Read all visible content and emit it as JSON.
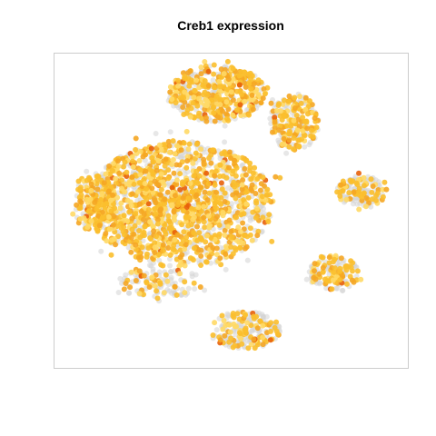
{
  "chart_data": {
    "type": "scatter",
    "title": "Creb1 expression",
    "xlabel": "",
    "ylabel": "",
    "grid": false,
    "legend": "none",
    "colors": {
      "unexpressed": "#d4d4d4",
      "low": "#ffd966",
      "mid": "#fbbf2e",
      "high": "#f5a623",
      "peak": "#e8600a",
      "frame": "#cccccc"
    },
    "regions": [
      {
        "name": "main-cluster",
        "cx": 0.36,
        "cy": 0.52,
        "rx": 0.26,
        "ry": 0.2,
        "weight": 0.5,
        "expressed_fraction": 0.65
      },
      {
        "name": "top-cluster",
        "cx": 0.46,
        "cy": 0.87,
        "rx": 0.14,
        "ry": 0.09,
        "weight": 0.16,
        "expressed_fraction": 0.65
      },
      {
        "name": "upper-right-cluster",
        "cx": 0.68,
        "cy": 0.78,
        "rx": 0.07,
        "ry": 0.09,
        "weight": 0.07,
        "expressed_fraction": 0.55
      },
      {
        "name": "left-arm",
        "cx": 0.12,
        "cy": 0.52,
        "rx": 0.06,
        "ry": 0.09,
        "weight": 0.06,
        "expressed_fraction": 0.75
      },
      {
        "name": "right-cluster",
        "cx": 0.87,
        "cy": 0.56,
        "rx": 0.07,
        "ry": 0.05,
        "weight": 0.05,
        "expressed_fraction": 0.45
      },
      {
        "name": "lower-right-cluster",
        "cx": 0.79,
        "cy": 0.3,
        "rx": 0.07,
        "ry": 0.06,
        "weight": 0.05,
        "expressed_fraction": 0.5
      },
      {
        "name": "bottom-cluster",
        "cx": 0.54,
        "cy": 0.12,
        "rx": 0.1,
        "ry": 0.06,
        "weight": 0.07,
        "expressed_fraction": 0.45
      },
      {
        "name": "lower-left-fringe",
        "cx": 0.3,
        "cy": 0.27,
        "rx": 0.12,
        "ry": 0.05,
        "weight": 0.04,
        "expressed_fraction": 0.35
      }
    ],
    "point_count": 3200,
    "xlim": [
      0,
      1
    ],
    "ylim": [
      0,
      1
    ]
  }
}
